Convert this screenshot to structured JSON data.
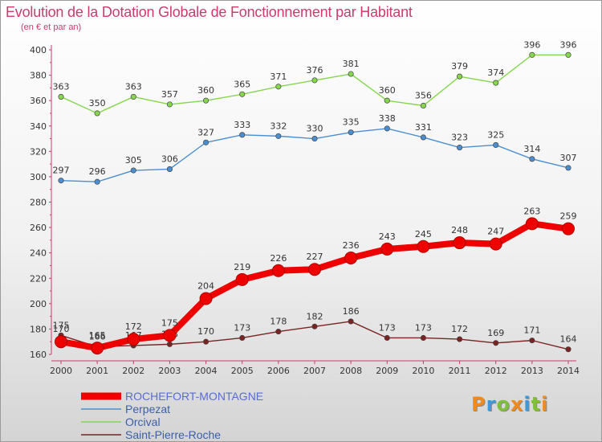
{
  "title": "Evolution de la Dotation Globale de Fonctionnement par Habitant",
  "subtitle": "(en € et par an)",
  "logo_text": "Proxiti",
  "colors": {
    "title": "#cc3b6a",
    "logo": [
      "#f08a1e",
      "#3a9ad9",
      "#7fbf3a",
      "#f08a1e",
      "#3a9ad9",
      "#7fbf3a",
      "#f08a1e"
    ]
  },
  "chart_data": {
    "type": "line",
    "x": [
      "2000",
      "2001",
      "2002",
      "2003",
      "2004",
      "2005",
      "2006",
      "2007",
      "2008",
      "2009",
      "2010",
      "2011",
      "2012",
      "2013",
      "2014"
    ],
    "ylim": [
      160,
      400
    ],
    "yticks": [
      160,
      180,
      200,
      220,
      240,
      260,
      280,
      300,
      320,
      340,
      360,
      380,
      400
    ],
    "grid": false,
    "legend_position": "bottom-left",
    "series": [
      {
        "name": "ROCHEFORT-MONTAGNE",
        "color": "#ee0000",
        "values": [
          170,
          165,
          172,
          175,
          204,
          219,
          226,
          227,
          236,
          243,
          245,
          248,
          247,
          263,
          259
        ]
      },
      {
        "name": "Perpezat",
        "color": "#4b8fd0",
        "values": [
          297,
          296,
          305,
          306,
          327,
          333,
          332,
          330,
          335,
          338,
          331,
          323,
          325,
          314,
          307
        ]
      },
      {
        "name": "Orcival",
        "color": "#86d64e",
        "values": [
          363,
          350,
          363,
          357,
          360,
          365,
          371,
          376,
          381,
          360,
          356,
          379,
          374,
          396,
          396
        ]
      },
      {
        "name": "Saint-Pierre-Roche",
        "color": "#7a2323",
        "values": [
          175,
          166,
          167,
          168,
          170,
          173,
          178,
          182,
          186,
          173,
          173,
          172,
          169,
          171,
          164
        ]
      }
    ]
  }
}
